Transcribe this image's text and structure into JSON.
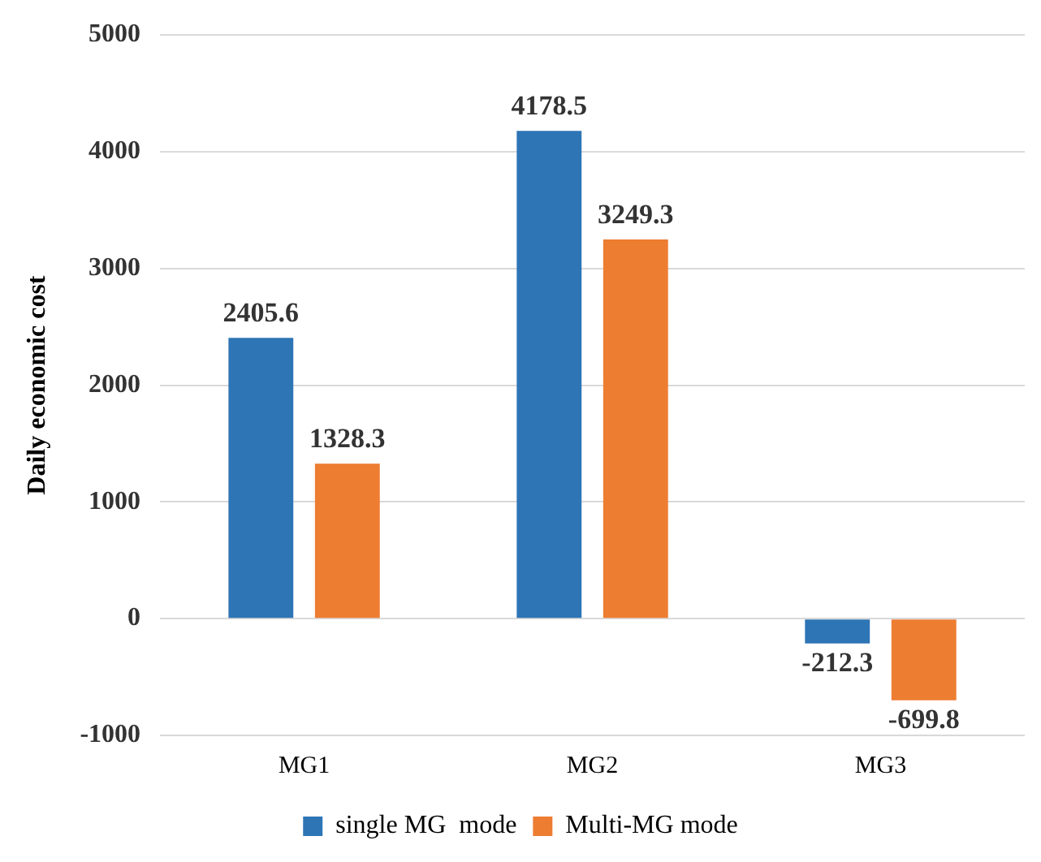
{
  "chart_data": {
    "type": "bar",
    "ylabel": "Daily economic cost",
    "categories": [
      "MG1",
      "MG2",
      "MG3"
    ],
    "series": [
      {
        "name": "single MG  mode",
        "color": "#2e75b6",
        "values": [
          2405.6,
          4178.5,
          -212.3
        ]
      },
      {
        "name": "Multi-MG mode",
        "color": "#ed7d31",
        "values": [
          1328.3,
          3249.3,
          -699.8
        ]
      }
    ],
    "ylim": [
      -1000,
      5000
    ],
    "yticks": [
      -1000,
      0,
      1000,
      2000,
      3000,
      4000,
      5000
    ],
    "grid": "y",
    "legend": "bottom",
    "data_labels": true
  }
}
